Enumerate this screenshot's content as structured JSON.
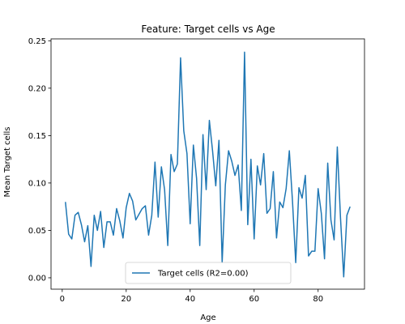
{
  "chart_data": {
    "type": "line",
    "title": "Feature: Target cells vs Age",
    "xlabel": "Age",
    "ylabel": "Mean Target cells",
    "xlim": [
      -3.5,
      94.5
    ],
    "ylim": [
      -0.012,
      0.252
    ],
    "xticks": [
      0,
      20,
      40,
      60,
      80
    ],
    "xtick_labels": [
      "0",
      "20",
      "40",
      "60",
      "80"
    ],
    "yticks": [
      0.0,
      0.05,
      0.1,
      0.15,
      0.2,
      0.25
    ],
    "ytick_labels": [
      "0.00",
      "0.05",
      "0.10",
      "0.15",
      "0.20",
      "0.25"
    ],
    "grid": false,
    "legend_position": "lower-center",
    "series": [
      {
        "name": "Target cells (R2=0.00)",
        "color": "#1f77b4",
        "x": [
          1,
          2,
          3,
          4,
          5,
          6,
          7,
          8,
          9,
          10,
          11,
          12,
          13,
          14,
          15,
          16,
          17,
          18,
          19,
          20,
          21,
          22,
          23,
          24,
          25,
          26,
          27,
          28,
          29,
          30,
          31,
          32,
          33,
          34,
          35,
          36,
          37,
          38,
          39,
          40,
          41,
          42,
          43,
          44,
          45,
          46,
          47,
          48,
          49,
          50,
          51,
          52,
          53,
          54,
          55,
          56,
          57,
          58,
          59,
          60,
          61,
          62,
          63,
          64,
          65,
          66,
          67,
          68,
          69,
          70,
          71,
          72,
          73,
          74,
          75,
          76,
          77,
          78,
          79,
          80,
          81,
          82,
          83,
          84,
          85,
          86,
          87,
          88,
          89,
          90
        ],
        "y": [
          0.08,
          0.046,
          0.041,
          0.066,
          0.069,
          0.056,
          0.038,
          0.055,
          0.012,
          0.066,
          0.05,
          0.07,
          0.032,
          0.059,
          0.059,
          0.045,
          0.073,
          0.06,
          0.042,
          0.074,
          0.089,
          0.081,
          0.061,
          0.067,
          0.073,
          0.076,
          0.045,
          0.066,
          0.122,
          0.064,
          0.117,
          0.093,
          0.034,
          0.13,
          0.112,
          0.12,
          0.232,
          0.155,
          0.131,
          0.057,
          0.14,
          0.105,
          0.034,
          0.151,
          0.093,
          0.166,
          0.134,
          0.097,
          0.145,
          0.016,
          0.098,
          0.134,
          0.123,
          0.108,
          0.119,
          0.071,
          0.238,
          0.056,
          0.125,
          0.041,
          0.118,
          0.098,
          0.131,
          0.068,
          0.073,
          0.112,
          0.042,
          0.08,
          0.074,
          0.094,
          0.134,
          0.08,
          0.016,
          0.095,
          0.084,
          0.108,
          0.023,
          0.028,
          0.028,
          0.094,
          0.068,
          0.02,
          0.121,
          0.061,
          0.04,
          0.138,
          0.063,
          0.001,
          0.066,
          0.075
        ]
      }
    ]
  }
}
